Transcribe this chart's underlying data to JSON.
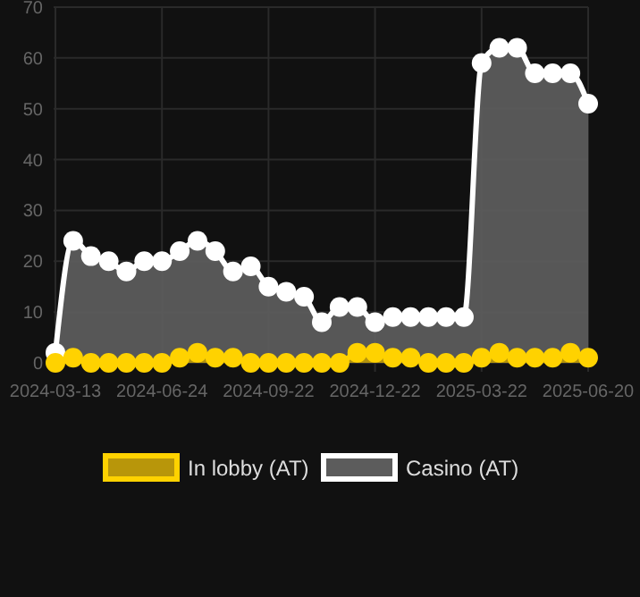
{
  "chart_data": {
    "type": "area",
    "categories": [
      "2024-03-13",
      null,
      null,
      null,
      null,
      null,
      "2024-06-24",
      null,
      null,
      null,
      null,
      null,
      "2024-09-22",
      null,
      null,
      null,
      null,
      null,
      "2024-12-22",
      null,
      null,
      null,
      null,
      null,
      "2025-03-22",
      null,
      null,
      null,
      null,
      null,
      "2025-06-20"
    ],
    "series": [
      {
        "name": "In lobby (AT)",
        "color": "#ffd200",
        "values": [
          0,
          1,
          0,
          0,
          0,
          0,
          0,
          1,
          2,
          1,
          1,
          0,
          0,
          0,
          0,
          0,
          0,
          2,
          2,
          1,
          1,
          0,
          0,
          0,
          1,
          2,
          1,
          1,
          1,
          2,
          1
        ]
      },
      {
        "name": "Casino (AT)",
        "color": "#ffffff",
        "values": [
          2,
          24,
          21,
          20,
          18,
          20,
          20,
          22,
          24,
          22,
          18,
          19,
          15,
          14,
          13,
          8,
          11,
          11,
          8,
          9,
          9,
          9,
          9,
          9,
          59,
          62,
          62,
          57,
          57,
          57,
          51
        ]
      }
    ],
    "ylim": [
      0,
      70
    ],
    "yticks": [
      0,
      10,
      20,
      30,
      40,
      50,
      60,
      70
    ],
    "grid": true,
    "legend": "bottom",
    "marker": "circle"
  }
}
